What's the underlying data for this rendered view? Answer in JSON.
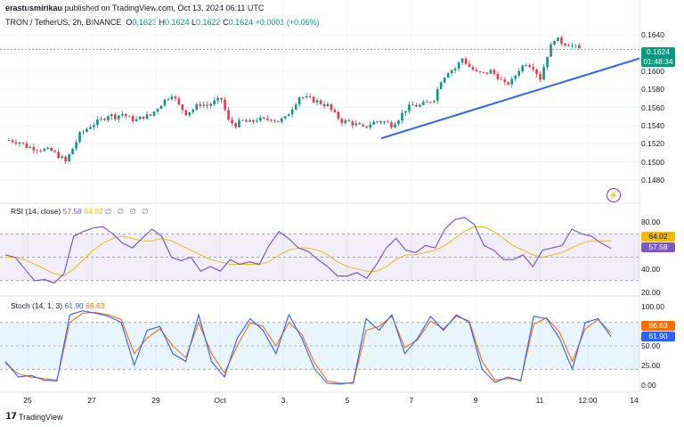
{
  "header": {
    "user": "erastusmirikau",
    "published": "published on TradingView.com, Oct 13, 2024 06:11 UTC"
  },
  "symbol": {
    "name": "TRON / TetherUS, 2h, BINANCE",
    "o_label": "O",
    "o": "0.1623",
    "h_label": "H",
    "h": "0.1624",
    "l_label": "L",
    "l": "0.1622",
    "c_label": "C",
    "c": "0.1624",
    "change": "+0.0001 (+0.06%)"
  },
  "price_badge": {
    "price": "0.1624",
    "countdown": "01:48:34"
  },
  "rsi": {
    "title": "RSI (14, close)",
    "value": "57.58",
    "ma": "64.02",
    "opts": "∅ ∅ ∅ ∅"
  },
  "stoch": {
    "title": "Stoch (14, 1, 3)",
    "k": "61.90",
    "d": "66.63"
  },
  "footer": {
    "brand": "TradingView"
  },
  "colors": {
    "up": "#089981",
    "down": "#f23645",
    "trend": "#2962ff",
    "rsi": "#7e57c2",
    "rsi_ma": "#f0b90b",
    "stoch_k": "#2962ff",
    "stoch_d": "#ff6d00"
  },
  "chart_data": [
    {
      "type": "candlestick",
      "title": "TRON / TetherUS, 2h, BINANCE",
      "y_ticks": [
        "0.1640",
        "0.1620",
        "0.1600",
        "0.1580",
        "0.1560",
        "0.1540",
        "0.1520",
        "0.1500",
        "0.1480"
      ],
      "ylim": [
        0.148,
        0.1648
      ],
      "x_ticks": [
        "25",
        "27",
        "29",
        "Oct",
        "3",
        "5",
        "7",
        "9",
        "11",
        "12:00",
        "14"
      ],
      "close_path": [
        [
          0,
          0.1524
        ],
        [
          3,
          0.1522
        ],
        [
          5,
          0.1517
        ],
        [
          9,
          0.1514
        ],
        [
          12,
          0.1512
        ],
        [
          14,
          0.1507
        ],
        [
          16,
          0.15
        ],
        [
          18,
          0.1515
        ],
        [
          20,
          0.153
        ],
        [
          23,
          0.154
        ],
        [
          26,
          0.1546
        ],
        [
          28,
          0.1552
        ],
        [
          30,
          0.155
        ],
        [
          32,
          0.1553
        ],
        [
          34,
          0.1548
        ],
        [
          36,
          0.1546
        ],
        [
          38,
          0.155
        ],
        [
          40,
          0.1551
        ],
        [
          42,
          0.156
        ],
        [
          44,
          0.1568
        ],
        [
          46,
          0.1575
        ],
        [
          48,
          0.1562
        ],
        [
          50,
          0.1554
        ],
        [
          52,
          0.1558
        ],
        [
          54,
          0.1564
        ],
        [
          56,
          0.1562
        ],
        [
          58,
          0.1566
        ],
        [
          60,
          0.1569
        ],
        [
          62,
          0.1545
        ],
        [
          64,
          0.1541
        ],
        [
          66,
          0.1545
        ],
        [
          68,
          0.1543
        ],
        [
          70,
          0.1547
        ],
        [
          72,
          0.1546
        ],
        [
          74,
          0.1548
        ],
        [
          76,
          0.1545
        ],
        [
          78,
          0.1548
        ],
        [
          80,
          0.156
        ],
        [
          82,
          0.1572
        ],
        [
          84,
          0.157
        ],
        [
          86,
          0.1568
        ],
        [
          88,
          0.1565
        ],
        [
          90,
          0.1562
        ],
        [
          92,
          0.1552
        ],
        [
          94,
          0.1545
        ],
        [
          96,
          0.1544
        ],
        [
          98,
          0.1541
        ],
        [
          100,
          0.1537
        ],
        [
          102,
          0.1542
        ],
        [
          104,
          0.1545
        ],
        [
          106,
          0.1544
        ],
        [
          108,
          0.1541
        ],
        [
          110,
          0.1548
        ],
        [
          112,
          0.1558
        ],
        [
          114,
          0.1562
        ],
        [
          116,
          0.1562
        ],
        [
          118,
          0.1565
        ],
        [
          120,
          0.157
        ],
        [
          122,
          0.159
        ],
        [
          124,
          0.16
        ],
        [
          126,
          0.1603
        ],
        [
          128,
          0.1614
        ],
        [
          130,
          0.1605
        ],
        [
          132,
          0.1598
        ],
        [
          134,
          0.1597
        ],
        [
          136,
          0.16
        ],
        [
          138,
          0.1594
        ],
        [
          140,
          0.1585
        ],
        [
          142,
          0.1589
        ],
        [
          144,
          0.1602
        ],
        [
          146,
          0.1609
        ],
        [
          148,
          0.1605
        ],
        [
          150,
          0.1592
        ],
        [
          152,
          0.1618
        ],
        [
          154,
          0.1636
        ],
        [
          156,
          0.1632
        ],
        [
          158,
          0.163
        ],
        [
          160,
          0.1626
        ],
        [
          161,
          0.1624
        ]
      ],
      "trendline": {
        "from": [
          103,
          0.1526
        ],
        "to": [
          173,
          0.1614
        ]
      }
    },
    {
      "type": "line",
      "title": "RSI (14, close)",
      "y_ticks": [
        "80.00",
        "40.00",
        "20.00"
      ],
      "ylim": [
        20,
        90
      ],
      "bands": [
        30,
        70
      ],
      "series": [
        {
          "name": "RSI",
          "values": [
            52,
            50,
            40,
            30,
            31,
            28,
            36,
            68,
            72,
            75,
            76,
            70,
            62,
            58,
            66,
            74,
            68,
            50,
            47,
            50,
            38,
            42,
            38,
            48,
            44,
            46,
            44,
            60,
            72,
            66,
            58,
            55,
            48,
            42,
            34,
            34,
            37,
            32,
            44,
            58,
            66,
            56,
            54,
            60,
            58,
            74,
            82,
            84,
            78,
            60,
            56,
            48,
            48,
            52,
            42,
            56,
            58,
            60,
            74,
            70,
            68,
            62,
            57.58
          ]
        },
        {
          "name": "",
          "values": [
            50,
            50,
            48,
            44,
            40,
            36,
            34,
            40,
            48,
            56,
            62,
            66,
            68,
            66,
            64,
            64,
            66,
            64,
            60,
            56,
            52,
            48,
            46,
            44,
            44,
            44,
            44,
            46,
            52,
            56,
            58,
            58,
            56,
            52,
            46,
            42,
            40,
            38,
            38,
            42,
            48,
            52,
            52,
            54,
            56,
            60,
            66,
            72,
            76,
            76,
            72,
            66,
            60,
            56,
            52,
            50,
            52,
            54,
            58,
            62,
            64,
            64,
            64.02
          ]
        }
      ]
    },
    {
      "type": "line",
      "title": "Stoch (14, 1, 3)",
      "y_ticks": [
        "100.00",
        "75.00",
        "50.00",
        "25.00",
        "0.00"
      ],
      "ylim": [
        -5,
        105
      ],
      "bands": [
        20,
        80
      ],
      "series": [
        {
          "name": "",
          "values": [
            30,
            10,
            12,
            6,
            5,
            90,
            95,
            92,
            88,
            80,
            25,
            70,
            75,
            40,
            30,
            90,
            30,
            10,
            60,
            85,
            70,
            40,
            90,
            60,
            20,
            2,
            1,
            3,
            85,
            70,
            90,
            40,
            60,
            88,
            70,
            90,
            80,
            20,
            3,
            10,
            5,
            88,
            85,
            60,
            20,
            80,
            85,
            61.9
          ]
        },
        {
          "name": "",
          "values": [
            28,
            14,
            10,
            8,
            6,
            80,
            92,
            93,
            90,
            84,
            40,
            60,
            72,
            50,
            35,
            80,
            40,
            15,
            50,
            80,
            75,
            50,
            80,
            65,
            28,
            5,
            2,
            2,
            70,
            75,
            88,
            48,
            58,
            82,
            72,
            88,
            82,
            30,
            6,
            8,
            6,
            78,
            86,
            68,
            30,
            72,
            84,
            66.63
          ]
        }
      ]
    }
  ]
}
